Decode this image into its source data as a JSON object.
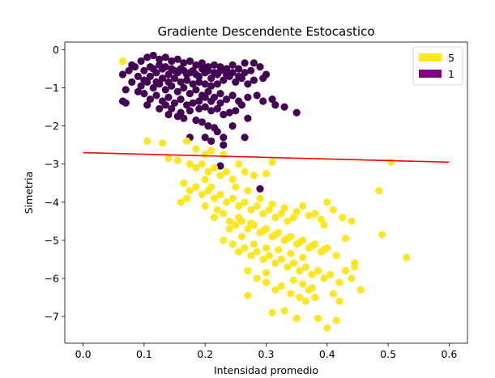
{
  "chart_data": {
    "type": "scatter",
    "title": "Gradiente Descendente Estocastico",
    "xlabel": "Intensidad promedio",
    "ylabel": "Simetria",
    "xlim": [
      -0.03,
      0.63
    ],
    "ylim": [
      -7.7,
      0.2
    ],
    "xticks": [
      0.0,
      0.1,
      0.2,
      0.3,
      0.4,
      0.5,
      0.6
    ],
    "xtick_labels": [
      "0.0",
      "0.1",
      "0.2",
      "0.3",
      "0.4",
      "0.5",
      "0.6"
    ],
    "yticks": [
      0,
      -1,
      -2,
      -3,
      -4,
      -5,
      -6,
      -7
    ],
    "ytick_labels": [
      "0",
      "−1",
      "−2",
      "−3",
      "−4",
      "−5",
      "−6",
      "−7"
    ],
    "grid": false,
    "legend": {
      "placement": "top-right",
      "entries": [
        {
          "label": "5",
          "color": "#fde725"
        },
        {
          "label": "1",
          "color": "#800080"
        }
      ]
    },
    "series": [
      {
        "name": "1",
        "color": "#440154",
        "points": [
          [
            0.095,
            -0.3
          ],
          [
            0.105,
            -0.2
          ],
          [
            0.115,
            -0.15
          ],
          [
            0.125,
            -0.25
          ],
          [
            0.135,
            -0.2
          ],
          [
            0.145,
            -0.3
          ],
          [
            0.155,
            -0.25
          ],
          [
            0.165,
            -0.35
          ],
          [
            0.175,
            -0.3
          ],
          [
            0.185,
            -0.4
          ],
          [
            0.195,
            -0.35
          ],
          [
            0.205,
            -0.45
          ],
          [
            0.215,
            -0.4
          ],
          [
            0.225,
            -0.45
          ],
          [
            0.235,
            -0.5
          ],
          [
            0.245,
            -0.4
          ],
          [
            0.255,
            -0.5
          ],
          [
            0.265,
            -0.35
          ],
          [
            0.28,
            -0.35
          ],
          [
            0.29,
            -0.45
          ],
          [
            0.065,
            -0.65
          ],
          [
            0.075,
            -0.55
          ],
          [
            0.085,
            -0.45
          ],
          [
            0.09,
            -0.7
          ],
          [
            0.1,
            -0.55
          ],
          [
            0.11,
            -0.45
          ],
          [
            0.12,
            -0.6
          ],
          [
            0.13,
            -0.5
          ],
          [
            0.14,
            -0.65
          ],
          [
            0.15,
            -0.55
          ],
          [
            0.16,
            -0.5
          ],
          [
            0.17,
            -0.65
          ],
          [
            0.18,
            -0.55
          ],
          [
            0.19,
            -0.7
          ],
          [
            0.2,
            -0.6
          ],
          [
            0.21,
            -0.75
          ],
          [
            0.22,
            -0.65
          ],
          [
            0.23,
            -0.8
          ],
          [
            0.24,
            -0.7
          ],
          [
            0.25,
            -0.85
          ],
          [
            0.26,
            -0.75
          ],
          [
            0.27,
            -0.9
          ],
          [
            0.28,
            -0.8
          ],
          [
            0.295,
            -0.75
          ],
          [
            0.3,
            -0.65
          ],
          [
            0.08,
            -0.85
          ],
          [
            0.095,
            -0.95
          ],
          [
            0.105,
            -0.85
          ],
          [
            0.115,
            -1.0
          ],
          [
            0.125,
            -0.9
          ],
          [
            0.135,
            -1.05
          ],
          [
            0.145,
            -0.95
          ],
          [
            0.155,
            -1.1
          ],
          [
            0.165,
            -1.0
          ],
          [
            0.175,
            -1.15
          ],
          [
            0.185,
            -1.05
          ],
          [
            0.195,
            -1.2
          ],
          [
            0.205,
            -1.1
          ],
          [
            0.215,
            -1.25
          ],
          [
            0.225,
            -1.15
          ],
          [
            0.235,
            -1.3
          ],
          [
            0.245,
            -1.2
          ],
          [
            0.255,
            -1.35
          ],
          [
            0.27,
            -1.25
          ],
          [
            0.285,
            -1.2
          ],
          [
            0.295,
            -1.35
          ],
          [
            0.31,
            -1.3
          ],
          [
            0.315,
            -1.45
          ],
          [
            0.1,
            -1.15
          ],
          [
            0.11,
            -1.3
          ],
          [
            0.12,
            -1.2
          ],
          [
            0.13,
            -1.35
          ],
          [
            0.14,
            -1.25
          ],
          [
            0.15,
            -1.4
          ],
          [
            0.16,
            -1.3
          ],
          [
            0.17,
            -1.45
          ],
          [
            0.18,
            -1.4
          ],
          [
            0.19,
            -1.55
          ],
          [
            0.2,
            -1.5
          ],
          [
            0.21,
            -1.6
          ],
          [
            0.22,
            -1.55
          ],
          [
            0.23,
            -1.7
          ],
          [
            0.24,
            -1.65
          ],
          [
            0.065,
            -1.35
          ],
          [
            0.07,
            -1.4
          ],
          [
            0.07,
            -1.05
          ],
          [
            0.14,
            -1.7
          ],
          [
            0.155,
            -1.75
          ],
          [
            0.165,
            -1.8
          ],
          [
            0.185,
            -1.85
          ],
          [
            0.195,
            -1.9
          ],
          [
            0.205,
            -2.0
          ],
          [
            0.215,
            -2.05
          ],
          [
            0.22,
            -2.15
          ],
          [
            0.23,
            -2.3
          ],
          [
            0.245,
            -2.0
          ],
          [
            0.25,
            -1.6
          ],
          [
            0.26,
            -1.45
          ],
          [
            0.27,
            -1.8
          ],
          [
            0.175,
            -2.3
          ],
          [
            0.2,
            -2.3
          ],
          [
            0.21,
            -2.4
          ],
          [
            0.23,
            -2.5
          ],
          [
            0.265,
            -2.3
          ],
          [
            0.33,
            -1.5
          ],
          [
            0.35,
            -1.65
          ],
          [
            0.225,
            -3.05
          ],
          [
            0.29,
            -3.65
          ],
          [
            0.08,
            -0.4
          ],
          [
            0.09,
            -1.1
          ],
          [
            0.1,
            -0.8
          ],
          [
            0.11,
            -0.7
          ],
          [
            0.12,
            -0.85
          ],
          [
            0.13,
            -0.75
          ],
          [
            0.14,
            -0.85
          ],
          [
            0.15,
            -0.75
          ],
          [
            0.16,
            -0.85
          ],
          [
            0.17,
            -0.8
          ],
          [
            0.18,
            -0.9
          ],
          [
            0.19,
            -0.85
          ],
          [
            0.2,
            -0.9
          ],
          [
            0.21,
            -0.95
          ],
          [
            0.22,
            -0.9
          ],
          [
            0.115,
            -0.5
          ],
          [
            0.125,
            -0.4
          ],
          [
            0.135,
            -0.45
          ],
          [
            0.145,
            -0.5
          ],
          [
            0.155,
            -0.6
          ],
          [
            0.165,
            -0.55
          ],
          [
            0.175,
            -0.6
          ],
          [
            0.185,
            -0.65
          ],
          [
            0.195,
            -0.5
          ],
          [
            0.205,
            -0.55
          ],
          [
            0.215,
            -0.6
          ],
          [
            0.225,
            -0.55
          ],
          [
            0.235,
            -0.65
          ],
          [
            0.245,
            -0.6
          ],
          [
            0.255,
            -0.7
          ],
          [
            0.265,
            -0.6
          ],
          [
            0.275,
            -0.55
          ],
          [
            0.105,
            -1.45
          ],
          [
            0.125,
            -1.55
          ],
          [
            0.135,
            -1.45
          ],
          [
            0.145,
            -1.55
          ],
          [
            0.16,
            -1.65
          ],
          [
            0.175,
            -1.6
          ],
          [
            0.19,
            -1.35
          ],
          [
            0.2,
            -1.25
          ],
          [
            0.21,
            -1.35
          ],
          [
            0.225,
            -1.4
          ]
        ]
      },
      {
        "name": "5",
        "color": "#fde725",
        "points": [
          [
            0.065,
            -0.3
          ],
          [
            0.105,
            -2.4
          ],
          [
            0.13,
            -2.45
          ],
          [
            0.17,
            -2.4
          ],
          [
            0.185,
            -2.6
          ],
          [
            0.2,
            -2.75
          ],
          [
            0.21,
            -2.65
          ],
          [
            0.23,
            -2.75
          ],
          [
            0.14,
            -2.85
          ],
          [
            0.155,
            -2.9
          ],
          [
            0.175,
            -3.0
          ],
          [
            0.185,
            -3.1
          ],
          [
            0.195,
            -3.0
          ],
          [
            0.205,
            -3.2
          ],
          [
            0.215,
            -3.1
          ],
          [
            0.225,
            -3.3
          ],
          [
            0.235,
            -3.2
          ],
          [
            0.245,
            -3.4
          ],
          [
            0.255,
            -3.0
          ],
          [
            0.265,
            -3.2
          ],
          [
            0.28,
            -3.3
          ],
          [
            0.3,
            -3.25
          ],
          [
            0.31,
            -2.95
          ],
          [
            0.165,
            -3.5
          ],
          [
            0.175,
            -3.7
          ],
          [
            0.185,
            -3.6
          ],
          [
            0.195,
            -3.8
          ],
          [
            0.205,
            -3.7
          ],
          [
            0.215,
            -3.9
          ],
          [
            0.225,
            -3.8
          ],
          [
            0.235,
            -4.0
          ],
          [
            0.245,
            -3.9
          ],
          [
            0.255,
            -4.1
          ],
          [
            0.265,
            -4.0
          ],
          [
            0.275,
            -4.2
          ],
          [
            0.285,
            -4.1
          ],
          [
            0.295,
            -4.3
          ],
          [
            0.305,
            -4.2
          ],
          [
            0.315,
            -4.4
          ],
          [
            0.325,
            -4.3
          ],
          [
            0.335,
            -4.5
          ],
          [
            0.345,
            -4.4
          ],
          [
            0.16,
            -4.0
          ],
          [
            0.17,
            -3.9
          ],
          [
            0.2,
            -4.1
          ],
          [
            0.215,
            -4.4
          ],
          [
            0.23,
            -4.3
          ],
          [
            0.24,
            -4.5
          ],
          [
            0.25,
            -4.6
          ],
          [
            0.26,
            -4.5
          ],
          [
            0.27,
            -4.7
          ],
          [
            0.28,
            -4.6
          ],
          [
            0.29,
            -4.8
          ],
          [
            0.3,
            -4.7
          ],
          [
            0.31,
            -4.9
          ],
          [
            0.32,
            -4.8
          ],
          [
            0.33,
            -5.0
          ],
          [
            0.34,
            -4.9
          ],
          [
            0.35,
            -5.1
          ],
          [
            0.36,
            -5.0
          ],
          [
            0.37,
            -5.2
          ],
          [
            0.38,
            -5.1
          ],
          [
            0.39,
            -5.3
          ],
          [
            0.4,
            -5.2
          ],
          [
            0.23,
            -5.0
          ],
          [
            0.245,
            -5.1
          ],
          [
            0.255,
            -5.3
          ],
          [
            0.265,
            -5.2
          ],
          [
            0.275,
            -5.4
          ],
          [
            0.285,
            -5.3
          ],
          [
            0.295,
            -5.5
          ],
          [
            0.305,
            -5.4
          ],
          [
            0.315,
            -5.6
          ],
          [
            0.325,
            -5.5
          ],
          [
            0.335,
            -5.7
          ],
          [
            0.345,
            -5.6
          ],
          [
            0.355,
            -5.8
          ],
          [
            0.365,
            -5.7
          ],
          [
            0.375,
            -5.9
          ],
          [
            0.385,
            -5.8
          ],
          [
            0.395,
            -6.0
          ],
          [
            0.405,
            -5.9
          ],
          [
            0.27,
            -5.8
          ],
          [
            0.285,
            -6.0
          ],
          [
            0.3,
            -6.1
          ],
          [
            0.315,
            -6.3
          ],
          [
            0.325,
            -6.2
          ],
          [
            0.34,
            -6.4
          ],
          [
            0.355,
            -6.5
          ],
          [
            0.37,
            -6.3
          ],
          [
            0.38,
            -6.5
          ],
          [
            0.27,
            -6.45
          ],
          [
            0.31,
            -6.9
          ],
          [
            0.33,
            -6.85
          ],
          [
            0.35,
            -7.05
          ],
          [
            0.365,
            -6.6
          ],
          [
            0.385,
            -7.05
          ],
          [
            0.4,
            -7.3
          ],
          [
            0.415,
            -7.1
          ],
          [
            0.42,
            -6.6
          ],
          [
            0.4,
            -4.0
          ],
          [
            0.41,
            -4.2
          ],
          [
            0.425,
            -4.4
          ],
          [
            0.44,
            -4.5
          ],
          [
            0.485,
            -3.7
          ],
          [
            0.505,
            -2.95
          ],
          [
            0.49,
            -4.85
          ],
          [
            0.53,
            -5.45
          ],
          [
            0.43,
            -4.95
          ],
          [
            0.415,
            -5.4
          ],
          [
            0.445,
            -5.6
          ],
          [
            0.455,
            -6.3
          ],
          [
            0.44,
            -6.0
          ],
          [
            0.42,
            -6.1
          ],
          [
            0.41,
            -6.4
          ],
          [
            0.43,
            -5.8
          ],
          [
            0.445,
            -5.7
          ],
          [
            0.36,
            -4.1
          ],
          [
            0.38,
            -4.3
          ],
          [
            0.395,
            -4.6
          ],
          [
            0.2,
            -3.4
          ],
          [
            0.21,
            -3.6
          ],
          [
            0.22,
            -4.2
          ],
          [
            0.24,
            -4.7
          ],
          [
            0.26,
            -4.9
          ],
          [
            0.28,
            -5.1
          ],
          [
            0.3,
            -5.2
          ],
          [
            0.32,
            -5.25
          ],
          [
            0.34,
            -5.35
          ],
          [
            0.36,
            -5.45
          ],
          [
            0.255,
            -4.4
          ],
          [
            0.275,
            -4.55
          ],
          [
            0.295,
            -4.75
          ],
          [
            0.315,
            -4.85
          ],
          [
            0.335,
            -4.95
          ],
          [
            0.355,
            -5.05
          ],
          [
            0.375,
            -5.15
          ],
          [
            0.395,
            -5.25
          ],
          [
            0.25,
            -3.6
          ],
          [
            0.27,
            -3.7
          ],
          [
            0.29,
            -3.9
          ],
          [
            0.31,
            -4.05
          ],
          [
            0.33,
            -4.15
          ],
          [
            0.35,
            -4.25
          ],
          [
            0.37,
            -4.35
          ],
          [
            0.39,
            -4.45
          ],
          [
            0.345,
            -6.05
          ],
          [
            0.36,
            -6.15
          ],
          [
            0.375,
            -6.25
          ],
          [
            0.3,
            -5.85
          ]
        ]
      }
    ],
    "line": {
      "color": "#ff0000",
      "x": [
        0.0,
        0.6
      ],
      "y": [
        -2.7,
        -2.95
      ]
    }
  }
}
